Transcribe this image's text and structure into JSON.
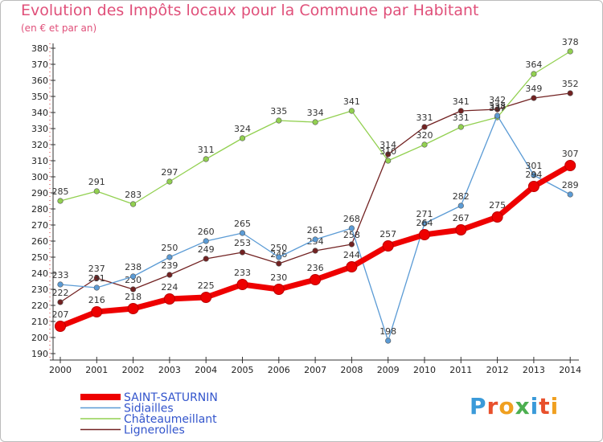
{
  "chart_data": {
    "type": "line",
    "title": "Evolution des Impôts locaux pour la Commune par Habitant",
    "subtitle": "(en € et par an)",
    "xlabel": "",
    "ylabel": "",
    "categories": [
      "2000",
      "2001",
      "2002",
      "2003",
      "2004",
      "2005",
      "2006",
      "2007",
      "2008",
      "2009",
      "2010",
      "2011",
      "2012",
      "2013",
      "2014"
    ],
    "ylim": [
      190,
      380
    ],
    "ytick_step": 10,
    "grid": false,
    "legend_position": "bottom-left",
    "series": [
      {
        "name": "SAINT-SATURNIN",
        "color": "#ee0000",
        "values": [
          207,
          216,
          218,
          224,
          225,
          233,
          230,
          236,
          244,
          257,
          264,
          267,
          275,
          294,
          307
        ]
      },
      {
        "name": "Sidiailles",
        "color": "#5b9bd5",
        "values": [
          233,
          231,
          238,
          250,
          260,
          265,
          250,
          261,
          268,
          198,
          271,
          282,
          338,
          301,
          289
        ]
      },
      {
        "name": "Châteaumeillant",
        "color": "#92d050",
        "values": [
          285,
          291,
          283,
          297,
          311,
          324,
          335,
          334,
          341,
          310,
          320,
          331,
          337,
          364,
          378
        ]
      },
      {
        "name": "Lignerolles",
        "color": "#722222",
        "values": [
          222,
          237,
          230,
          239,
          249,
          253,
          246,
          254,
          258,
          314,
          331,
          341,
          342,
          349,
          352
        ]
      }
    ]
  },
  "logo": {
    "text": "Proxiti",
    "letters": [
      "P",
      "r",
      "o",
      "x",
      "i",
      "t",
      "i"
    ]
  }
}
